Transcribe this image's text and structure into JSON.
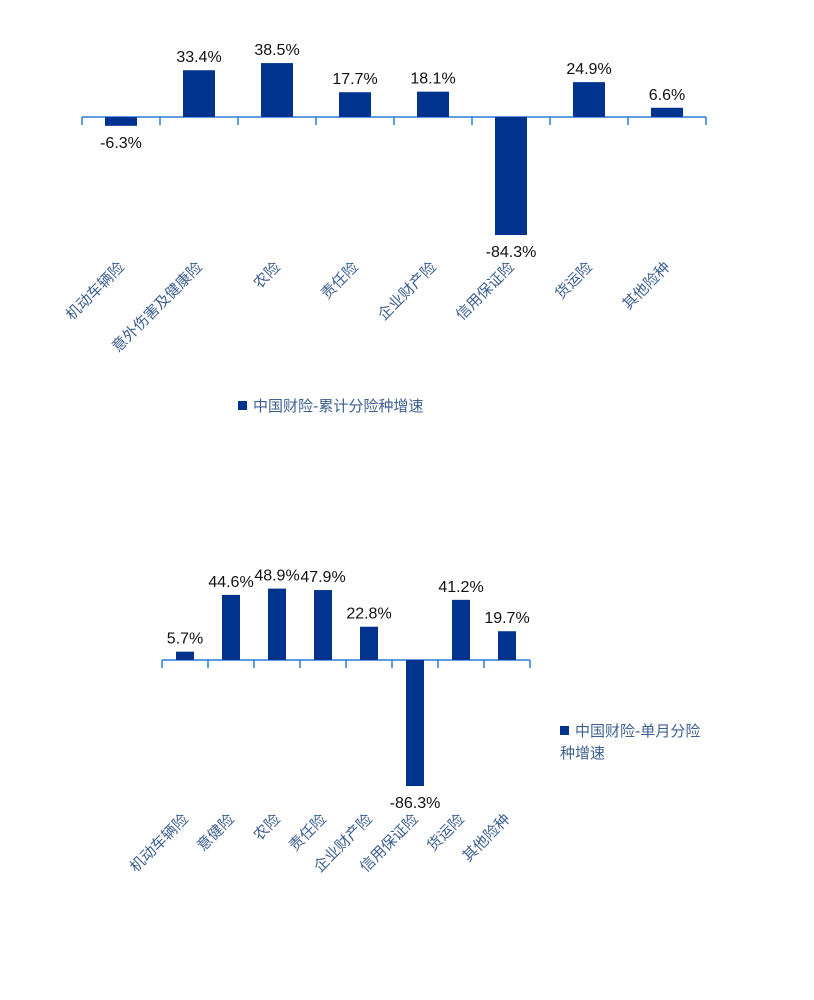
{
  "chart_data": [
    {
      "type": "bar",
      "categories": [
        "机动车辆险",
        "意外伤害及健康险",
        "农险",
        "责任险",
        "企业财产险",
        "信用保证险",
        "货运险",
        "其他险种"
      ],
      "series": [
        {
          "name": "中国财险-累计分险种增速",
          "values": [
            -6.3,
            33.4,
            38.5,
            17.7,
            18.1,
            -84.3,
            24.9,
            6.6
          ]
        }
      ],
      "value_labels": [
        "-6.3%",
        "33.4%",
        "38.5%",
        "17.7%",
        "18.1%",
        "-84.3%",
        "24.9%",
        "6.6%"
      ],
      "legend": "bottom",
      "grid": false,
      "color": "#00338e"
    },
    {
      "type": "bar",
      "categories": [
        "机动车辆险",
        "意健险",
        "农险",
        "责任险",
        "企业财产险",
        "信用保证险",
        "货运险",
        "其他险种"
      ],
      "series": [
        {
          "name": "中国财险-单月分险种增速",
          "values": [
            5.7,
            44.6,
            48.9,
            47.9,
            22.8,
            -86.3,
            41.2,
            19.7
          ]
        }
      ],
      "value_labels": [
        "5.7%",
        "44.6%",
        "48.9%",
        "47.9%",
        "22.8%",
        "-86.3%",
        "41.2%",
        "19.7%"
      ],
      "legend": "right",
      "grid": false,
      "color": "#00338e"
    }
  ],
  "legends": {
    "chart1": "中国财险-累计分险种增速",
    "chart2_line1": "中国财险-单月分险",
    "chart2_line2": "种增速"
  }
}
